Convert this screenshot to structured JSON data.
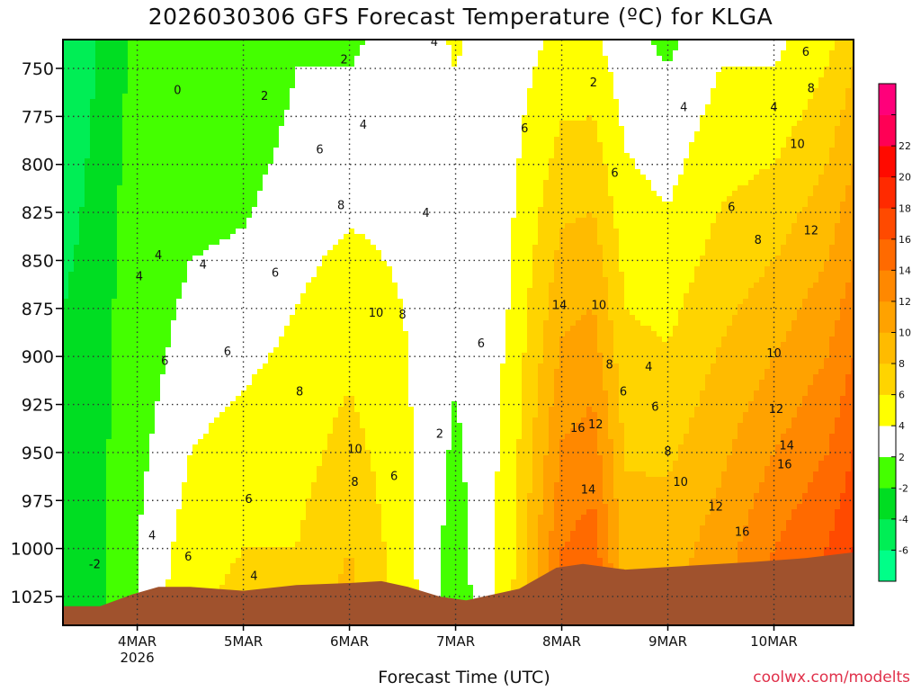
{
  "chart_data": {
    "type": "heatmap",
    "title": "2026030306 GFS Forecast Temperature (ºC) for KLGA",
    "xlabel": "Forecast Time (UTC)",
    "ylabel": "",
    "credit": "coolwx.com/modelts",
    "y_axis": {
      "inverted": true,
      "range": [
        735,
        1040
      ],
      "ticks": [
        750,
        775,
        800,
        825,
        850,
        875,
        900,
        925,
        950,
        975,
        1000,
        1025
      ]
    },
    "x_axis": {
      "range": [
        3.3,
        10.75
      ],
      "ticks": [
        {
          "x": 4,
          "label": "4MAR",
          "sublabel": "2026"
        },
        {
          "x": 5,
          "label": "5MAR",
          "sublabel": ""
        },
        {
          "x": 6,
          "label": "6MAR",
          "sublabel": ""
        },
        {
          "x": 7,
          "label": "7MAR",
          "sublabel": ""
        },
        {
          "x": 8,
          "label": "8MAR",
          "sublabel": ""
        },
        {
          "x": 9,
          "label": "9MAR",
          "sublabel": ""
        },
        {
          "x": 10,
          "label": "10MAR",
          "sublabel": ""
        }
      ]
    },
    "grid": true,
    "colorbar": {
      "position": "right",
      "boundaries": [
        -8,
        -6,
        -4,
        -2,
        2,
        4,
        6,
        8,
        10,
        12,
        14,
        16,
        18,
        20,
        22,
        24
      ],
      "colors": [
        "#00ff88",
        "#00ee55",
        "#00dd22",
        "#44ff00",
        "#ffffff",
        "#ffff00",
        "#ffd400",
        "#ffbb00",
        "#ffa200",
        "#ff8800",
        "#ff6a00",
        "#ff4a00",
        "#ff2a00",
        "#ff0a00",
        "#ff0055",
        "#ff007a"
      ],
      "tick_labels": [
        "-6",
        "-4",
        "-2",
        "2",
        "4",
        "6",
        "8",
        "10",
        "12",
        "14",
        "16",
        "18",
        "20",
        "22"
      ]
    },
    "surface": [
      {
        "x": 3.3,
        "p": 1030
      },
      {
        "x": 3.65,
        "p": 1030
      },
      {
        "x": 3.95,
        "p": 1024
      },
      {
        "x": 4.2,
        "p": 1020
      },
      {
        "x": 4.5,
        "p": 1020
      },
      {
        "x": 5.0,
        "p": 1022
      },
      {
        "x": 5.5,
        "p": 1019
      },
      {
        "x": 6.0,
        "p": 1018
      },
      {
        "x": 6.3,
        "p": 1017
      },
      {
        "x": 6.55,
        "p": 1020
      },
      {
        "x": 6.85,
        "p": 1025
      },
      {
        "x": 7.1,
        "p": 1027
      },
      {
        "x": 7.6,
        "p": 1021
      },
      {
        "x": 7.95,
        "p": 1010
      },
      {
        "x": 8.2,
        "p": 1008
      },
      {
        "x": 8.6,
        "p": 1011
      },
      {
        "x": 9.2,
        "p": 1009
      },
      {
        "x": 9.8,
        "p": 1007
      },
      {
        "x": 10.3,
        "p": 1005
      },
      {
        "x": 10.75,
        "p": 1002
      }
    ],
    "temperature_profile": [
      {
        "x": 3.3,
        "t750": -5,
        "t1000": -3
      },
      {
        "x": 3.6,
        "t750": -4,
        "t1000": -3
      },
      {
        "x": 3.9,
        "t750": -2,
        "t1000": 0
      },
      {
        "x": 4.0,
        "t750": -1,
        "t1000": 2
      },
      {
        "x": 4.5,
        "t750": 0,
        "t1000": 5
      },
      {
        "x": 5.0,
        "t750": 0,
        "t1000": 6
      },
      {
        "x": 5.5,
        "t750": 2,
        "t1000": 6
      },
      {
        "x": 6.0,
        "t750": 2,
        "t1000": 8
      },
      {
        "x": 6.5,
        "t750": 3,
        "t1000": 5
      },
      {
        "x": 7.0,
        "t750": 4,
        "t1000": 1
      },
      {
        "x": 7.5,
        "t750": 3,
        "t1000": 5
      },
      {
        "x": 8.0,
        "t750": 5,
        "t1000": 14
      },
      {
        "x": 8.3,
        "t750": 5,
        "t1000": 15
      },
      {
        "x": 8.6,
        "t750": 3,
        "t1000": 9
      },
      {
        "x": 9.0,
        "t750": 2,
        "t1000": 9
      },
      {
        "x": 9.5,
        "t750": 4,
        "t1000": 11
      },
      {
        "x": 10.0,
        "t750": 4,
        "t1000": 14
      },
      {
        "x": 10.5,
        "t750": 6,
        "t1000": 16
      },
      {
        "x": 10.75,
        "t750": 8,
        "t1000": 18
      }
    ],
    "contour_labels": [
      {
        "x": 3.6,
        "p": 1008,
        "text": "-2"
      },
      {
        "x": 4.38,
        "p": 761,
        "text": "0"
      },
      {
        "x": 5.2,
        "p": 764,
        "text": "2"
      },
      {
        "x": 5.95,
        "p": 745,
        "text": "2"
      },
      {
        "x": 6.85,
        "p": 940,
        "text": "2"
      },
      {
        "x": 8.3,
        "p": 757,
        "text": "2"
      },
      {
        "x": 4.2,
        "p": 847,
        "text": "4"
      },
      {
        "x": 4.62,
        "p": 852,
        "text": "4"
      },
      {
        "x": 4.02,
        "p": 858,
        "text": "4"
      },
      {
        "x": 4.14,
        "p": 993,
        "text": "4"
      },
      {
        "x": 5.1,
        "p": 1014,
        "text": "4"
      },
      {
        "x": 6.13,
        "p": 779,
        "text": "4"
      },
      {
        "x": 6.8,
        "p": 736,
        "text": "4"
      },
      {
        "x": 6.72,
        "p": 825,
        "text": "4"
      },
      {
        "x": 8.82,
        "p": 905,
        "text": "4"
      },
      {
        "x": 9.15,
        "p": 770,
        "text": "4"
      },
      {
        "x": 10.0,
        "p": 770,
        "text": "4"
      },
      {
        "x": 4.26,
        "p": 902,
        "text": "6"
      },
      {
        "x": 4.85,
        "p": 897,
        "text": "6"
      },
      {
        "x": 5.3,
        "p": 856,
        "text": "6"
      },
      {
        "x": 5.72,
        "p": 792,
        "text": "6"
      },
      {
        "x": 5.05,
        "p": 974,
        "text": "6"
      },
      {
        "x": 4.48,
        "p": 1004,
        "text": "6"
      },
      {
        "x": 6.42,
        "p": 962,
        "text": "6"
      },
      {
        "x": 7.24,
        "p": 893,
        "text": "6"
      },
      {
        "x": 7.65,
        "p": 781,
        "text": "6"
      },
      {
        "x": 8.5,
        "p": 804,
        "text": "6"
      },
      {
        "x": 8.58,
        "p": 918,
        "text": "6"
      },
      {
        "x": 8.88,
        "p": 926,
        "text": "6"
      },
      {
        "x": 10.3,
        "p": 741,
        "text": "6"
      },
      {
        "x": 9.6,
        "p": 822,
        "text": "6"
      },
      {
        "x": 5.92,
        "p": 821,
        "text": "8"
      },
      {
        "x": 6.5,
        "p": 878,
        "text": "8"
      },
      {
        "x": 5.53,
        "p": 918,
        "text": "8"
      },
      {
        "x": 6.05,
        "p": 965,
        "text": "8"
      },
      {
        "x": 8.45,
        "p": 904,
        "text": "8"
      },
      {
        "x": 9.0,
        "p": 949,
        "text": "8"
      },
      {
        "x": 9.85,
        "p": 839,
        "text": "8"
      },
      {
        "x": 10.35,
        "p": 760,
        "text": "8"
      },
      {
        "x": 6.25,
        "p": 877,
        "text": "10"
      },
      {
        "x": 6.05,
        "p": 948,
        "text": "10"
      },
      {
        "x": 8.35,
        "p": 873,
        "text": "10"
      },
      {
        "x": 9.12,
        "p": 965,
        "text": "10"
      },
      {
        "x": 10.0,
        "p": 898,
        "text": "10"
      },
      {
        "x": 10.22,
        "p": 789,
        "text": "10"
      },
      {
        "x": 8.32,
        "p": 935,
        "text": "12"
      },
      {
        "x": 9.45,
        "p": 978,
        "text": "12"
      },
      {
        "x": 10.02,
        "p": 927,
        "text": "12"
      },
      {
        "x": 10.35,
        "p": 834,
        "text": "12"
      },
      {
        "x": 7.98,
        "p": 873,
        "text": "14"
      },
      {
        "x": 8.25,
        "p": 969,
        "text": "14"
      },
      {
        "x": 10.12,
        "p": 946,
        "text": "14"
      },
      {
        "x": 8.15,
        "p": 937,
        "text": "16"
      },
      {
        "x": 9.7,
        "p": 991,
        "text": "16"
      },
      {
        "x": 10.1,
        "p": 956,
        "text": "16"
      }
    ]
  }
}
